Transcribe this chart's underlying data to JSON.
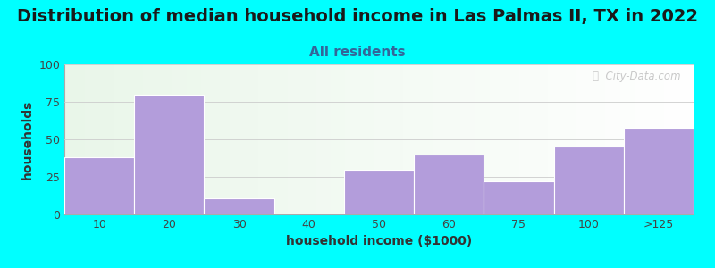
{
  "title": "Distribution of median household income in Las Palmas II, TX in 2022",
  "subtitle": "All residents",
  "xlabel": "household income ($1000)",
  "ylabel": "households",
  "background_color": "#00FFFF",
  "bar_color": "#b39ddb",
  "bar_edge_color": "#c8b8e8",
  "categories": [
    "10",
    "20",
    "30",
    "40",
    "50",
    "60",
    "75",
    "100",
    ">125"
  ],
  "values": [
    38,
    80,
    11,
    0,
    30,
    40,
    22,
    45,
    58
  ],
  "ylim": [
    0,
    100
  ],
  "yticks": [
    0,
    25,
    50,
    75,
    100
  ],
  "watermark": "ⓘ  City-Data.com",
  "title_fontsize": 14,
  "subtitle_fontsize": 11,
  "axis_label_fontsize": 10,
  "tick_fontsize": 9,
  "title_color": "#1a1a1a",
  "subtitle_color": "#336699",
  "xlabel_color": "#333333",
  "ylabel_color": "#333333"
}
